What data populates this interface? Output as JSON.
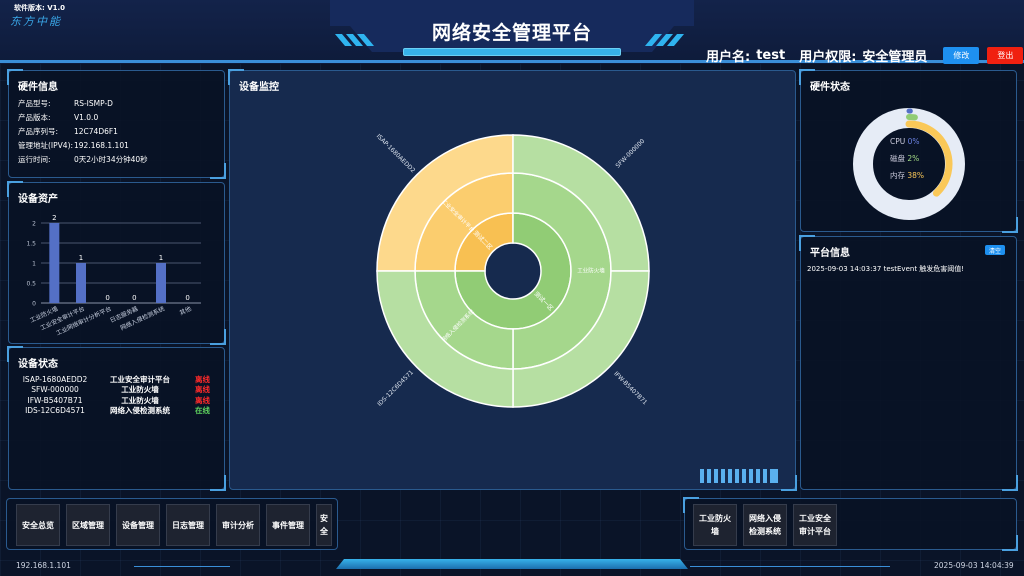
{
  "header": {
    "version": "软件版本: V1.0",
    "logo": "东方中能",
    "title": "网络安全管理平台",
    "user_label": "用户名:",
    "user": "test",
    "role_label": "用户权限:",
    "role": "安全管理员",
    "edit_btn": "修改",
    "logout_btn": "登出"
  },
  "hardware_info": {
    "title": "硬件信息",
    "items": [
      {
        "k": "产品型号:",
        "v": "RS-ISMP-D"
      },
      {
        "k": "产品版本:",
        "v": "V1.0.0"
      },
      {
        "k": "产品序列号:",
        "v": "12C74D6F1"
      },
      {
        "k": "管理地址(IPV4):",
        "v": "192.168.1.101"
      },
      {
        "k": "运行时间:",
        "v": "0天2小时34分钟40秒"
      }
    ]
  },
  "assets": {
    "title": "设备资产",
    "chart_data": {
      "type": "bar",
      "categories": [
        "工业防火墙",
        "工业安全审计平台",
        "工业网络审计分析平台",
        "日志服务器",
        "网络入侵检测系统",
        "其他"
      ],
      "values": [
        2,
        1,
        0,
        0,
        1,
        0
      ],
      "ylim": [
        0,
        2
      ],
      "yticks": [
        "0",
        "0.5",
        "1",
        "1.5",
        "2"
      ],
      "color": "#5470c6"
    }
  },
  "device_status": {
    "title": "设备状态",
    "rows": [
      {
        "id": "ISAP-1680AEDD2",
        "type": "工业安全审计平台",
        "status": "离线",
        "color": "#ff2a2a"
      },
      {
        "id": "SFW-000000",
        "type": "工业防火墙",
        "status": "离线",
        "color": "#ff2a2a"
      },
      {
        "id": "IFW-B5407B71",
        "type": "工业防火墙",
        "status": "离线",
        "color": "#ff2a2a"
      },
      {
        "id": "IDS-12C6D4571",
        "type": "网络入侵检测系统",
        "status": "在线",
        "color": "#5fd35f"
      }
    ]
  },
  "monitor": {
    "title": "设备监控",
    "chart_data": {
      "type": "sunburst",
      "zones": [
        {
          "name": "测试二区",
          "children": [
            {
              "name": "工业安全审计平台",
              "children": [
                {
                  "name": "ISAP-1680AEDD2",
                  "value": 1
                }
              ]
            }
          ]
        },
        {
          "name": "测试一区",
          "children": [
            {
              "name": "工业防火墙",
              "children": [
                {
                  "name": "SFW-000000",
                  "value": 1
                },
                {
                  "name": "IFW-B5407B71",
                  "value": 1
                }
              ]
            },
            {
              "name": "网络入侵检测系统",
              "children": [
                {
                  "name": "IDS-12C6D4571",
                  "value": 1
                }
              ]
            }
          ]
        }
      ],
      "colors": {
        "测试二区": [
          "#f8c052",
          "#fbcd6e",
          "#fdd98c"
        ],
        "测试一区": [
          "#91cc75",
          "#a5d78c",
          "#b6dfa2"
        ]
      }
    }
  },
  "hw_status": {
    "title": "硬件状态",
    "cpu_label": "CPU",
    "cpu": "0%",
    "cpu_value": 0,
    "disk_label": "磁盘",
    "disk": "2%",
    "disk_value": 2,
    "mem_label": "内存",
    "mem": "38%",
    "mem_value": 38,
    "colors": {
      "cpu": "#5470c6",
      "disk": "#91cc75",
      "mem": "#fac858"
    }
  },
  "platform": {
    "title": "平台信息",
    "clear_btn": "清空",
    "messages": [
      "2025-09-03 14:03:37 testEvent 触发危害阈值!"
    ]
  },
  "nav_left": [
    "安全总览",
    "区域管理",
    "设备管理",
    "日志管理",
    "审计分析",
    "事件管理",
    "安全"
  ],
  "nav_right": [
    "工业防火墙",
    "网络入侵检测系统",
    "工业安全审计平台"
  ],
  "footer": {
    "ip": "192.168.1.101",
    "time": "2025-09-03 14:04:39"
  }
}
